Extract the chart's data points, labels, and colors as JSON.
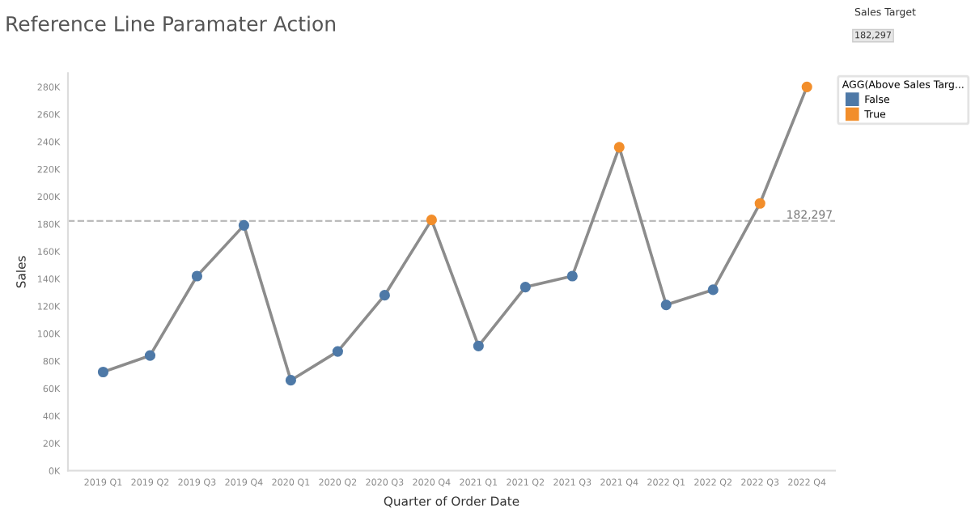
{
  "chart_data": {
    "type": "line",
    "title": "Reference Line Paramater Action",
    "xlabel": "Quarter of Order Date",
    "ylabel": "Sales",
    "legend_title": "AGG(Above Sales Targ...",
    "legend": "right",
    "grid": false,
    "categories": [
      "2019 Q1",
      "2019 Q2",
      "2019 Q3",
      "2019 Q4",
      "2020 Q1",
      "2020 Q2",
      "2020 Q3",
      "2020 Q4",
      "2021 Q1",
      "2021 Q2",
      "2021 Q3",
      "2021 Q4",
      "2022 Q1",
      "2022 Q2",
      "2022 Q3",
      "2022 Q4"
    ],
    "series": [
      {
        "color": "#8c8c8c",
        "marker": "none",
        "values": [
          72000,
          84000,
          142000,
          179000,
          66000,
          87000,
          128000,
          183000,
          91000,
          134000,
          142000,
          236000,
          121000,
          132000,
          195000,
          280000
        ]
      },
      {
        "type": "scatter",
        "name": "False",
        "color": "#4e79a7",
        "marker": "circle",
        "values": [
          72000,
          84000,
          142000,
          179000,
          66000,
          87000,
          128000,
          null,
          91000,
          134000,
          142000,
          null,
          121000,
          132000,
          null,
          null
        ]
      },
      {
        "type": "scatter",
        "name": "True",
        "color": "#f28e2b",
        "marker": "circle",
        "values": [
          null,
          null,
          null,
          null,
          null,
          null,
          null,
          183000,
          null,
          null,
          null,
          236000,
          null,
          null,
          195000,
          280000
        ]
      }
    ],
    "ylim": [
      0,
      290000
    ],
    "yticks": [
      {
        "value": 0,
        "label": "0K"
      },
      {
        "value": 20000,
        "label": "20K"
      },
      {
        "value": 40000,
        "label": "40K"
      },
      {
        "value": 60000,
        "label": "60K"
      },
      {
        "value": 80000,
        "label": "80K"
      },
      {
        "value": 100000,
        "label": "100K"
      },
      {
        "value": 120000,
        "label": "120K"
      },
      {
        "value": 140000,
        "label": "140K"
      },
      {
        "value": 160000,
        "label": "160K"
      },
      {
        "value": 180000,
        "label": "180K"
      },
      {
        "value": 200000,
        "label": "200K"
      },
      {
        "value": 220000,
        "label": "220K"
      },
      {
        "value": 240000,
        "label": "240K"
      },
      {
        "value": 260000,
        "label": "260K"
      },
      {
        "value": 280000,
        "label": "280K"
      }
    ],
    "ref_lines": [
      {
        "axis": "y",
        "value": 182297,
        "label": "182,297",
        "color": "#bbbbbb",
        "line_style": "dashed"
      }
    ],
    "annotations": [
      "Sales Target",
      "182,297"
    ]
  }
}
